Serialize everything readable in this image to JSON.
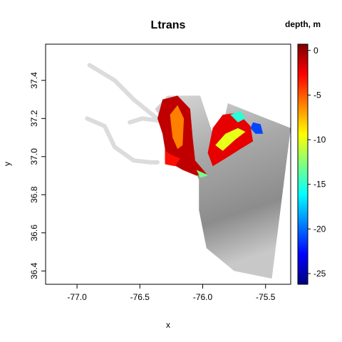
{
  "chart_data": {
    "type": "heatmap",
    "title": "Ltrans",
    "xlabel": "x",
    "ylabel": "y",
    "xlim": [
      -77.25,
      -75.3
    ],
    "ylim": [
      36.33,
      37.59
    ],
    "x_ticks": [
      -77.0,
      -76.5,
      -76.0,
      -75.5
    ],
    "x_tick_labels": [
      "-77.0",
      "-76.5",
      "-76.0",
      "-75.5"
    ],
    "y_ticks": [
      36.4,
      36.6,
      36.8,
      37.0,
      37.2,
      37.4
    ],
    "y_tick_labels": [
      "36.4",
      "36.6",
      "36.8",
      "37.0",
      "37.2",
      "37.4"
    ],
    "colorbar": {
      "title": "depth, m",
      "range": [
        -26.2,
        0.7
      ],
      "ticks": [
        0,
        -5,
        -10,
        -15,
        -20,
        -25
      ],
      "tick_labels": [
        "0",
        "-5",
        "-10",
        "-15",
        "-20",
        "-25"
      ],
      "colormap": "jet"
    },
    "background_layer": {
      "description_color": "grayscale bathymetry",
      "polygon": [
        [
          -76.28,
          37.32
        ],
        [
          -76.02,
          37.32
        ],
        [
          -75.92,
          37.12
        ],
        [
          -75.86,
          37.1
        ],
        [
          -75.8,
          37.28
        ],
        [
          -75.3,
          37.15
        ],
        [
          -75.45,
          36.36
        ],
        [
          -75.75,
          36.4
        ],
        [
          -75.97,
          36.52
        ],
        [
          -76.03,
          36.72
        ],
        [
          -76.03,
          36.88
        ],
        [
          -76.12,
          37.0
        ],
        [
          -76.38,
          37.25
        ]
      ]
    },
    "rivers": [
      [
        [
          -76.9,
          37.48
        ],
        [
          -76.7,
          37.4
        ],
        [
          -76.55,
          37.3
        ],
        [
          -76.4,
          37.22
        ],
        [
          -76.33,
          37.18
        ]
      ],
      [
        [
          -76.92,
          37.2
        ],
        [
          -76.78,
          37.16
        ],
        [
          -76.7,
          37.05
        ],
        [
          -76.55,
          36.98
        ],
        [
          -76.42,
          36.97
        ],
        [
          -76.36,
          36.97
        ]
      ],
      [
        [
          -76.58,
          37.18
        ],
        [
          -76.48,
          37.2
        ],
        [
          -76.36,
          37.19
        ]
      ]
    ],
    "regions": [
      {
        "name": "",
        "polygon": [
          [
            -76.36,
            37.2
          ],
          [
            -76.32,
            37.3
          ],
          [
            -76.2,
            37.32
          ],
          [
            -76.1,
            37.25
          ],
          [
            -76.08,
            37.1
          ],
          [
            -76.06,
            36.98
          ],
          [
            -75.97,
            36.91
          ],
          [
            -76.05,
            36.9
          ],
          [
            -76.16,
            36.93
          ],
          [
            -76.24,
            36.96
          ],
          [
            -76.3,
            36.97
          ],
          [
            -76.3,
            37.04
          ],
          [
            -76.32,
            37.12
          ]
        ],
        "depth": -1
      },
      {
        "name": "",
        "polygon": [
          [
            -76.26,
            37.22
          ],
          [
            -76.2,
            37.27
          ],
          [
            -76.15,
            37.2
          ],
          [
            -76.16,
            37.06
          ],
          [
            -76.2,
            37.04
          ],
          [
            -76.24,
            37.1
          ]
        ],
        "depth": -6
      },
      {
        "name": "",
        "polygon": [
          [
            -76.3,
            37.03
          ],
          [
            -76.25,
            37.01
          ],
          [
            -76.18,
            36.99
          ],
          [
            -76.22,
            36.95
          ],
          [
            -76.3,
            36.96
          ]
        ],
        "depth": -3
      },
      {
        "name": "",
        "polygon": [
          [
            -75.96,
            37.02
          ],
          [
            -75.92,
            37.15
          ],
          [
            -75.84,
            37.22
          ],
          [
            -75.72,
            37.23
          ],
          [
            -75.62,
            37.16
          ],
          [
            -75.6,
            37.08
          ],
          [
            -75.7,
            37.04
          ],
          [
            -75.82,
            36.99
          ],
          [
            -75.92,
            36.95
          ]
        ],
        "depth": -2
      },
      {
        "name": "",
        "polygon": [
          [
            -75.9,
            37.06
          ],
          [
            -75.82,
            37.12
          ],
          [
            -75.72,
            37.15
          ],
          [
            -75.66,
            37.13
          ],
          [
            -75.74,
            37.09
          ],
          [
            -75.84,
            37.03
          ]
        ],
        "depth": -10
      },
      {
        "name": "",
        "polygon": [
          [
            -75.78,
            37.22
          ],
          [
            -75.7,
            37.24
          ],
          [
            -75.66,
            37.2
          ],
          [
            -75.72,
            37.18
          ]
        ],
        "depth": -15
      },
      {
        "name": "",
        "polygon": [
          [
            -75.6,
            37.18
          ],
          [
            -75.54,
            37.17
          ],
          [
            -75.52,
            37.12
          ],
          [
            -75.58,
            37.12
          ],
          [
            -75.62,
            37.15
          ]
        ],
        "depth": -21
      },
      {
        "name": "",
        "polygon": [
          [
            -76.05,
            36.93
          ],
          [
            -75.98,
            36.91
          ],
          [
            -75.96,
            36.9
          ],
          [
            -76.02,
            36.89
          ]
        ],
        "depth": -13
      }
    ]
  }
}
